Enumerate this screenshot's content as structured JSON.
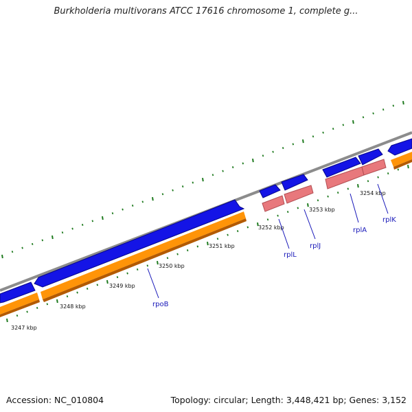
{
  "title": "Burkholderia multivorans ATCC 17616 chromosome 1, complete g...",
  "accession": "Accession: NC_010804",
  "summary": "Topology: circular; Length: 3,448,421 bp; Genes: 3,152",
  "colors": {
    "backbone": "#8c8c8c",
    "forward_cds": "#1414e6",
    "reverse_cds": "#ff9408",
    "rna_gene": "#e8787c",
    "tick": "#1e7a1e",
    "label_line": "#1515b8"
  },
  "ruler_labels": [
    "3247 kbp",
    "3248 kbp",
    "3249 kbp",
    "3250 kbp",
    "3251 kbp",
    "3252 kbp",
    "3253 kbp",
    "3254 kbp"
  ],
  "gene_labels": [
    "rpoB",
    "rplL",
    "rplJ",
    "rplA",
    "rplK"
  ]
}
